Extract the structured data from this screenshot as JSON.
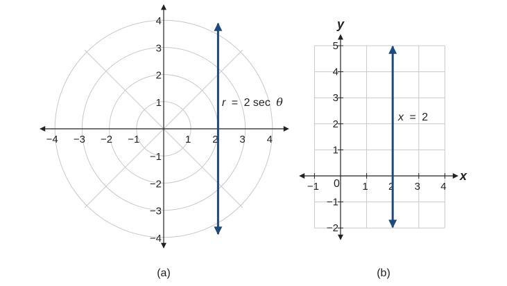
{
  "colors": {
    "curve": "#1c4a7e",
    "axis": "#222222",
    "grid": "#c8c8c8"
  },
  "panel_a": {
    "caption": "(a)",
    "equation": {
      "var": "r",
      "eq": "=",
      "rest": "2 sec",
      "theta": "θ"
    },
    "x_ticks": [
      "−4",
      "−3",
      "−2",
      "−1",
      "1",
      "2",
      "3",
      "4"
    ],
    "x_tick_values": [
      -4,
      -3,
      -2,
      -1,
      1,
      2,
      3,
      4
    ],
    "y_ticks": [
      "4",
      "3",
      "2",
      "1",
      "−1",
      "−2",
      "−3",
      "−4"
    ],
    "y_tick_values": [
      4,
      3,
      2,
      1,
      -1,
      -2,
      -3,
      -4
    ],
    "circle_radii": [
      1,
      2,
      3,
      4
    ],
    "line_x": 2
  },
  "panel_b": {
    "caption": "(b)",
    "x_label": "x",
    "y_label": "y",
    "origin_label": "0",
    "equation": {
      "var": "x",
      "eq": "=",
      "rest": "2"
    },
    "x_ticks": [
      "−1",
      "1",
      "2",
      "3",
      "4"
    ],
    "x_tick_values": [
      -1,
      1,
      2,
      3,
      4
    ],
    "y_ticks": [
      "5",
      "4",
      "3",
      "2",
      "1",
      "−1",
      "−2"
    ],
    "y_tick_values": [
      5,
      4,
      3,
      2,
      1,
      -1,
      -2
    ],
    "xlim": [
      -1,
      4
    ],
    "ylim": [
      -2,
      5
    ],
    "line_x": 2
  }
}
